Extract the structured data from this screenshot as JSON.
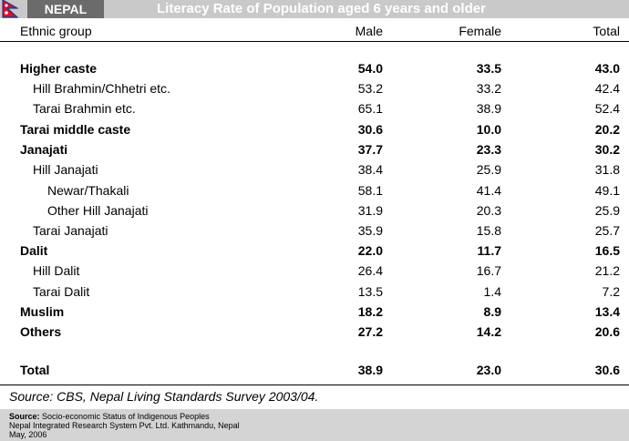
{
  "header": {
    "country": "NEPAL",
    "title": "Literacy Rate of Population aged 6 years and older"
  },
  "table": {
    "columns": [
      "Ethnic group",
      "Male",
      "Female",
      "Total"
    ],
    "rows": [
      {
        "group": "Higher caste",
        "male": "54.0",
        "female": "33.5",
        "total": "43.0"
      },
      {
        "group": "Hill Brahmin/Chhetri etc.",
        "male": "53.2",
        "female": "33.2",
        "total": "42.4"
      },
      {
        "group": "Tarai Brahmin etc.",
        "male": "65.1",
        "female": "38.9",
        "total": "52.4"
      },
      {
        "group": "Tarai middle caste",
        "male": "30.6",
        "female": "10.0",
        "total": "20.2"
      },
      {
        "group": "Janajati",
        "male": "37.7",
        "female": "23.3",
        "total": "30.2"
      },
      {
        "group": "Hill Janajati",
        "male": "38.4",
        "female": "25.9",
        "total": "31.8"
      },
      {
        "group": "Newar/Thakali",
        "male": "58.1",
        "female": "41.4",
        "total": "49.1"
      },
      {
        "group": "Other Hill Janajati",
        "male": "31.9",
        "female": "20.3",
        "total": "25.9"
      },
      {
        "group": "Tarai Janajati",
        "male": "35.9",
        "female": "15.8",
        "total": "25.7"
      },
      {
        "group": "Dalit",
        "male": "22.0",
        "female": "11.7",
        "total": "16.5"
      },
      {
        "group": "Hill Dalit",
        "male": "26.4",
        "female": "16.7",
        "total": "21.2"
      },
      {
        "group": "Tarai Dalit",
        "male": "13.5",
        "female": "1.4",
        "total": "7.2"
      },
      {
        "group": "Muslim",
        "male": "18.2",
        "female": "8.9",
        "total": "13.4"
      },
      {
        "group": "Others",
        "male": "27.2",
        "female": "14.2",
        "total": "20.6"
      },
      {
        "group": "Total",
        "male": "38.9",
        "female": "23.0",
        "total": "30.6"
      }
    ]
  },
  "source_note": "Source: CBS, Nepal Living Standards Survey 2003/04.",
  "footer": {
    "label": "Source:",
    "line1": "Socio-economic Status of Indigenous Peoples",
    "line2": "Nepal Integrated Research System Pvt. Ltd. Kathmandu, Nepal",
    "line3": "May, 2006"
  },
  "colors": {
    "banner": "#c9c9c9",
    "country_box": "#6b6b6b",
    "footer_bg": "#d4d4d4",
    "flag_red": "#d90d2b",
    "flag_blue": "#1b3a8c"
  }
}
